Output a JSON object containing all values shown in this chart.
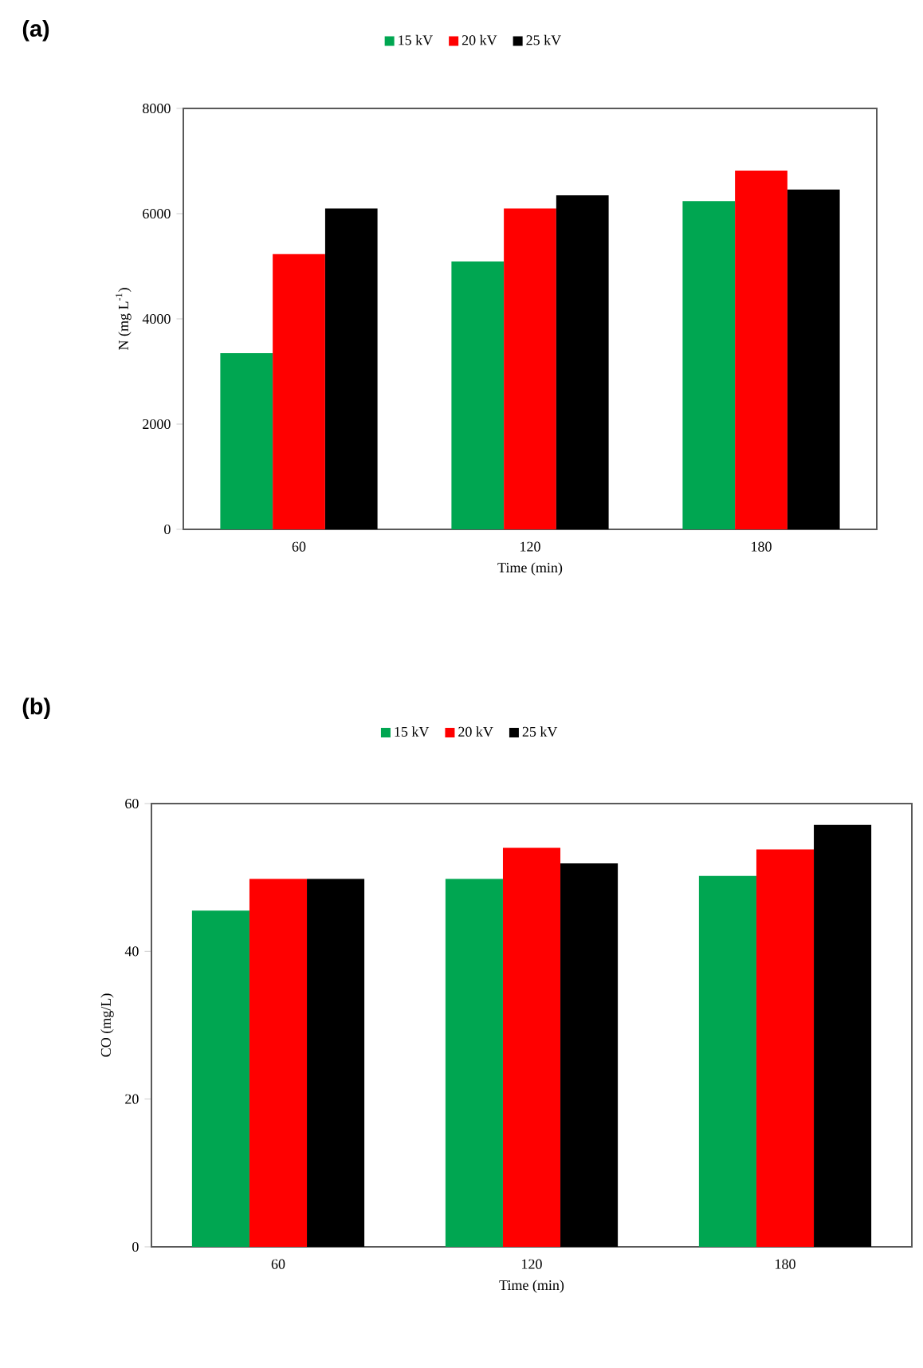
{
  "chart_data": [
    {
      "type": "bar",
      "title": "(a)",
      "xlabel": "Time (min)",
      "ylabel": "N (mg L$^{-1}$)",
      "categories": [
        "60",
        "120",
        "180"
      ],
      "series": [
        {
          "name": "15 kV",
          "color": "#00a651",
          "values": [
            3350,
            5090,
            6240
          ]
        },
        {
          "name": "20 kV",
          "color": "#ff0000",
          "values": [
            5230,
            6100,
            6820
          ]
        },
        {
          "name": "25 kV",
          "color": "#000000",
          "values": [
            6100,
            6350,
            6460
          ]
        }
      ],
      "ylim": [
        0,
        8000
      ],
      "yticks": [
        0,
        2000,
        4000,
        6000,
        8000
      ],
      "legend": "top"
    },
    {
      "type": "bar",
      "title": "(b)",
      "xlabel": "Time (min)",
      "ylabel": "CO (mg/L)",
      "categories": [
        "60",
        "120",
        "180"
      ],
      "series": [
        {
          "name": "15 kV",
          "color": "#00a651",
          "values": [
            45.5,
            49.8,
            50.2
          ]
        },
        {
          "name": "20 kV",
          "color": "#ff0000",
          "values": [
            49.8,
            54,
            53.8
          ]
        },
        {
          "name": "25 kV",
          "color": "#000000",
          "values": [
            49.8,
            51.9,
            57.1
          ]
        }
      ],
      "ylim": [
        0,
        60
      ],
      "yticks": [
        0,
        20,
        40,
        60
      ],
      "legend": "top"
    }
  ]
}
